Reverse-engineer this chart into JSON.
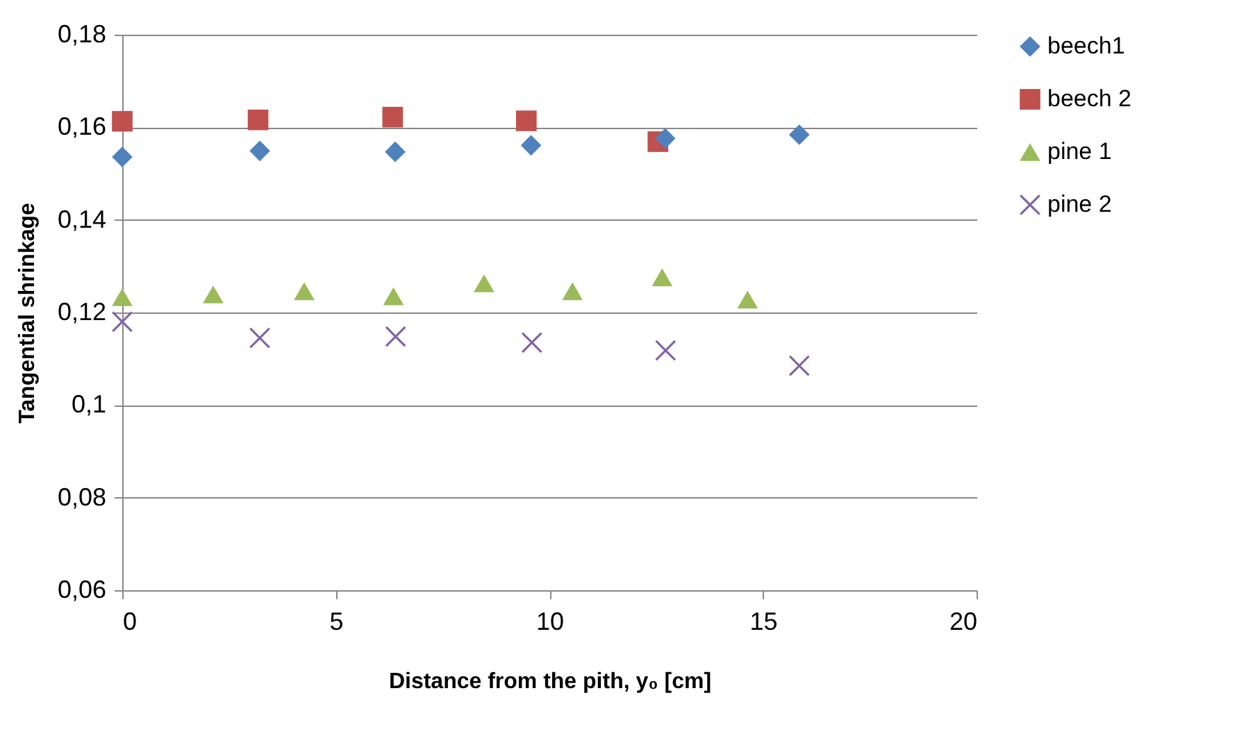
{
  "chart_data": {
    "type": "scatter",
    "xlabel": "Distance from the pith, y₀ [cm]",
    "ylabel": "Tangential shrinkage",
    "xlim": [
      0,
      20
    ],
    "xticks": [
      0,
      5,
      10,
      15,
      20
    ],
    "ylim": [
      0.06,
      0.18
    ],
    "yticks": [
      {
        "value": 0.06,
        "label": "0,06"
      },
      {
        "value": 0.08,
        "label": "0,08"
      },
      {
        "value": 0.1,
        "label": "0,1"
      },
      {
        "value": 0.12,
        "label": "0,12"
      },
      {
        "value": 0.14,
        "label": "0,14"
      },
      {
        "value": 0.16,
        "label": "0,16"
      },
      {
        "value": 0.18,
        "label": "0,18"
      }
    ],
    "grid": "y",
    "legend": "right",
    "series": [
      {
        "name": "beech1",
        "color": "#4f81bd",
        "marker": "diamond",
        "x": [
          0.0,
          3.22,
          6.39,
          9.57,
          12.71,
          15.85
        ],
        "values": [
          0.1536,
          0.1549,
          0.1547,
          0.1561,
          0.1576,
          0.1584
        ]
      },
      {
        "name": "beech 2",
        "color": "#c0504d",
        "marker": "square",
        "x": [
          0.0,
          3.18,
          6.33,
          9.46,
          12.54
        ],
        "values": [
          0.1613,
          0.1616,
          0.1622,
          0.1614,
          0.1569
        ]
      },
      {
        "name": "pine 1",
        "color": "#9bbb59",
        "marker": "triangle",
        "x": [
          0.0,
          2.13,
          4.26,
          6.35,
          8.47,
          10.54,
          12.64,
          14.64
        ],
        "values": [
          0.1233,
          0.1239,
          0.1246,
          0.1235,
          0.1263,
          0.1246,
          0.1276,
          0.1228
        ]
      },
      {
        "name": "pine 2",
        "color": "#8064a2",
        "marker": "cross",
        "x": [
          0.0,
          3.22,
          6.4,
          9.59,
          12.72,
          15.85
        ],
        "values": [
          0.118,
          0.1145,
          0.1148,
          0.1135,
          0.1118,
          0.1085
        ]
      }
    ]
  }
}
